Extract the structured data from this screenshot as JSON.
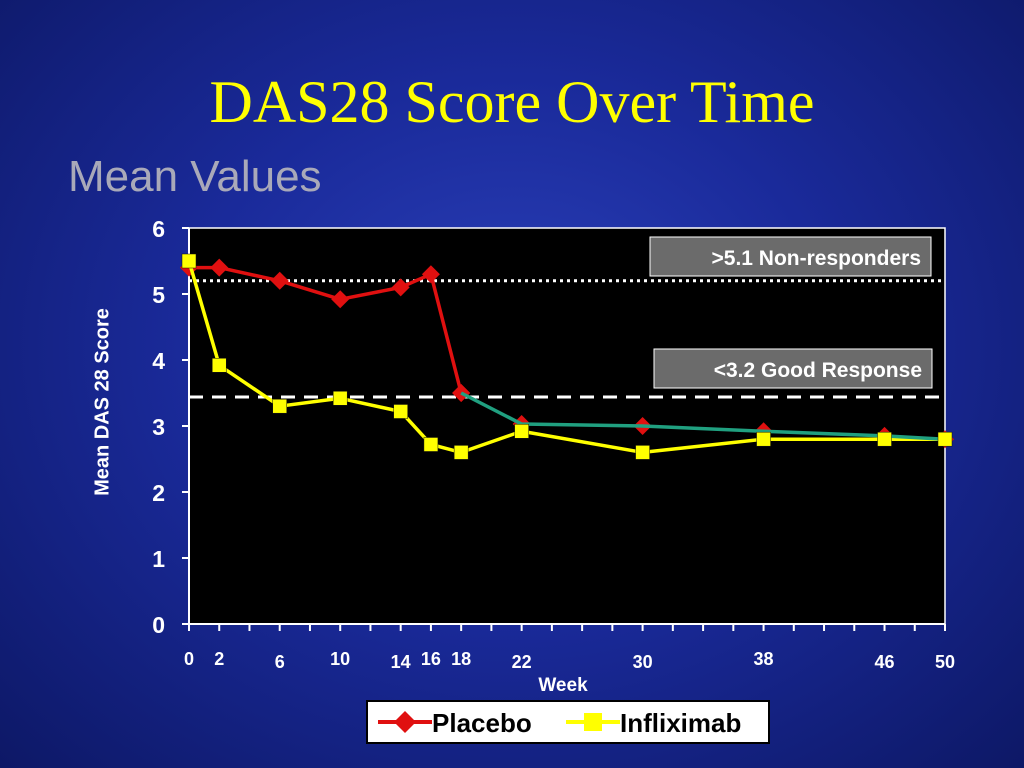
{
  "slide": {
    "title": "DAS28 Score Over Time",
    "subtitle": "Mean Values"
  },
  "colors": {
    "placebo_line": "#e01010",
    "placebo_marker": "#e01010",
    "infliximab_line": "#ffff00",
    "infliximab_marker": "#ffff00",
    "combined_line": "#20a080",
    "title": "#ffff00"
  },
  "chart_data": {
    "type": "line",
    "title": "",
    "xlabel": "Week",
    "ylabel": "Mean DAS 28 Score",
    "xlim": [
      0,
      50
    ],
    "ylim": [
      0,
      6
    ],
    "x_tick_labels": [
      0,
      2,
      6,
      10,
      14,
      16,
      18,
      22,
      30,
      38,
      46,
      50
    ],
    "y_tick_labels": [
      0,
      1,
      2,
      3,
      4,
      5,
      6
    ],
    "series": [
      {
        "name": "Placebo",
        "marker": "diamond",
        "x": [
          0,
          2,
          6,
          10,
          14,
          16,
          18
        ],
        "values": [
          5.4,
          5.4,
          5.2,
          4.92,
          5.1,
          5.3,
          3.5
        ]
      },
      {
        "name": "Infliximab",
        "marker": "square",
        "x": [
          0,
          2,
          6,
          10,
          14,
          16,
          18,
          22,
          30,
          38,
          46,
          50
        ],
        "values": [
          5.5,
          3.92,
          3.3,
          3.42,
          3.22,
          2.72,
          2.6,
          2.92,
          2.6,
          2.8,
          2.8,
          2.8
        ]
      },
      {
        "marker": "diamond",
        "x": [
          18,
          22,
          30,
          38,
          46,
          50
        ],
        "values": [
          3.5,
          3.03,
          3.0,
          2.92,
          2.85,
          2.8
        ]
      }
    ],
    "reference_lines": [
      {
        "y": 5.2,
        "style": "dotted",
        "label": ">5.1 Non-responders"
      },
      {
        "y": 3.44,
        "style": "dashed",
        "label": "<3.2 Good Response"
      }
    ],
    "grid": false,
    "legend": "bottom-center"
  }
}
